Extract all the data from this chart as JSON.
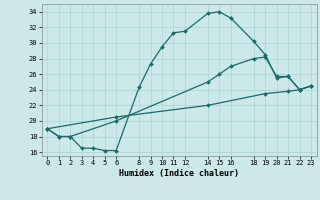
{
  "xlabel": "Humidex (Indice chaleur)",
  "bg_color": "#cce8e8",
  "grid_color": "#aad4d4",
  "line_color": "#1a6b6b",
  "xlim": [
    -0.5,
    23.5
  ],
  "ylim": [
    15.5,
    35.0
  ],
  "xticks": [
    0,
    1,
    2,
    3,
    4,
    5,
    6,
    8,
    9,
    10,
    11,
    12,
    14,
    15,
    16,
    18,
    19,
    20,
    21,
    22,
    23
  ],
  "yticks": [
    16,
    18,
    20,
    22,
    24,
    26,
    28,
    30,
    32,
    34
  ],
  "line1_x": [
    0,
    1,
    2,
    3,
    4,
    5,
    6,
    8,
    9,
    10,
    11,
    12,
    14,
    15,
    16,
    18,
    19,
    20,
    21,
    22,
    23
  ],
  "line1_y": [
    19,
    18,
    18,
    16.5,
    16.5,
    16.2,
    16.2,
    24.3,
    27.3,
    29.5,
    31.3,
    31.5,
    33.8,
    34.0,
    33.2,
    30.2,
    28.5,
    25.5,
    25.7,
    24.0,
    24.5
  ],
  "line2_x": [
    0,
    1,
    2,
    6,
    14,
    15,
    16,
    18,
    19,
    20,
    21,
    22,
    23
  ],
  "line2_y": [
    19,
    18,
    18,
    20.0,
    25.0,
    26.0,
    27.0,
    28.0,
    28.2,
    25.7,
    25.7,
    24.0,
    24.5
  ],
  "line3_x": [
    0,
    6,
    14,
    19,
    21,
    22,
    23
  ],
  "line3_y": [
    19.0,
    20.5,
    22.0,
    23.5,
    23.8,
    24.0,
    24.5
  ]
}
